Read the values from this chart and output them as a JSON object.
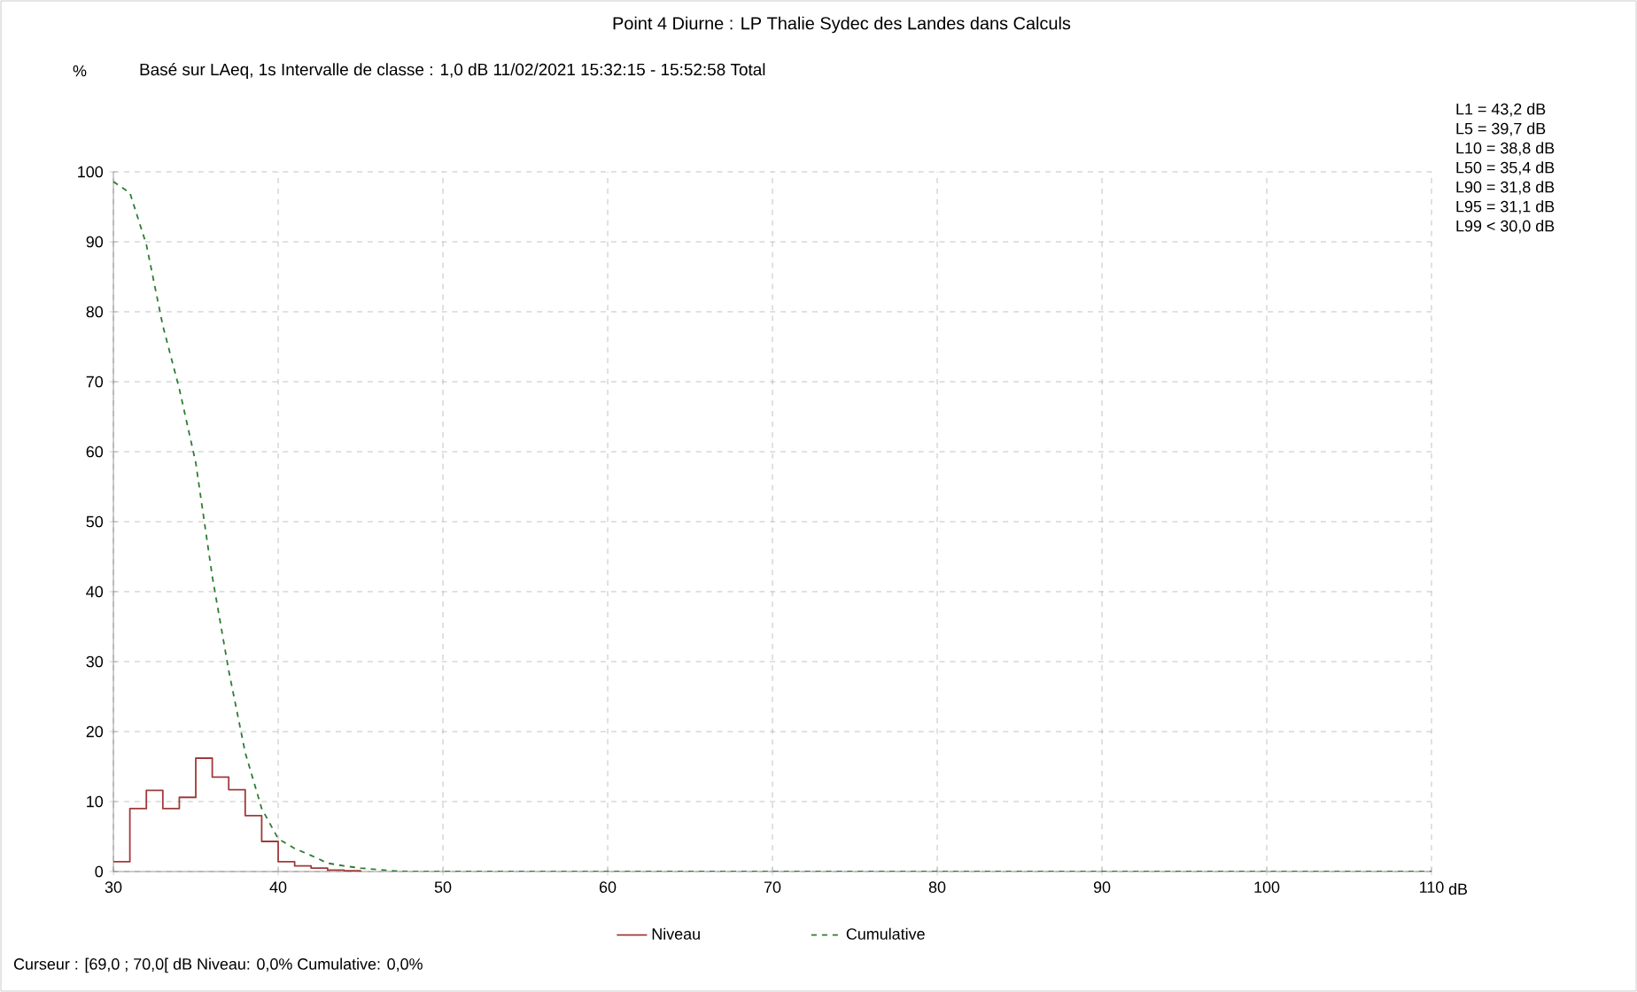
{
  "chart_data": {
    "type": "line",
    "title": "Point 4 Diurne : LP Thalie Sydec des Landes dans Calculs",
    "subtitle": "Basé sur LAeq, 1s Intervalle de classe : 1,0 dB  11/02/2021 15:32:15 - 15:52:58  Total",
    "xlabel": "dB",
    "xlim": [
      30,
      110
    ],
    "xticks": [
      30,
      40,
      50,
      60,
      70,
      80,
      90,
      100,
      110
    ],
    "ylim": [
      0,
      100
    ],
    "yticks": [
      0,
      10,
      20,
      30,
      40,
      50,
      60,
      70,
      80,
      90,
      100
    ],
    "grid": true,
    "legend": "bottom",
    "series": [
      {
        "name": "Niveau",
        "type": "step",
        "color": "#a03a3a",
        "line_style": "solid",
        "x": [
          30,
          31,
          32,
          33,
          34,
          35,
          36,
          37,
          38,
          39,
          40,
          41,
          42,
          43,
          44,
          45
        ],
        "values": [
          1.4,
          9.0,
          11.6,
          9.0,
          10.6,
          16.2,
          13.5,
          11.7,
          8.0,
          4.3,
          1.4,
          0.8,
          0.5,
          0.2,
          0.1,
          0
        ]
      },
      {
        "name": "Cumulative",
        "type": "line",
        "color": "#2e7d32",
        "line_style": "dashed",
        "x": [
          30,
          31,
          32,
          33,
          34,
          35,
          36,
          37,
          38,
          39,
          40,
          41,
          42,
          43,
          44,
          45,
          46,
          47,
          48,
          110
        ],
        "values": [
          98.6,
          97,
          89.6,
          78,
          69,
          58.4,
          42.2,
          28.7,
          17,
          9,
          4.7,
          3.3,
          2.3,
          1.2,
          0.8,
          0.5,
          0.3,
          0.1,
          0,
          0
        ]
      }
    ],
    "annotations": [
      "%",
      "L1 = 43,2 dB",
      "L5 = 39,7 dB",
      "L10 = 38,8 dB",
      "L50 = 35,4 dB",
      "L90 = 31,8 dB",
      "L95 = 31,1 dB",
      "L99 < 30,0 dB",
      "Curseur : [69,0 ; 70,0[ dB   Niveau: 0,0%   Cumulative: 0,0%"
    ]
  }
}
